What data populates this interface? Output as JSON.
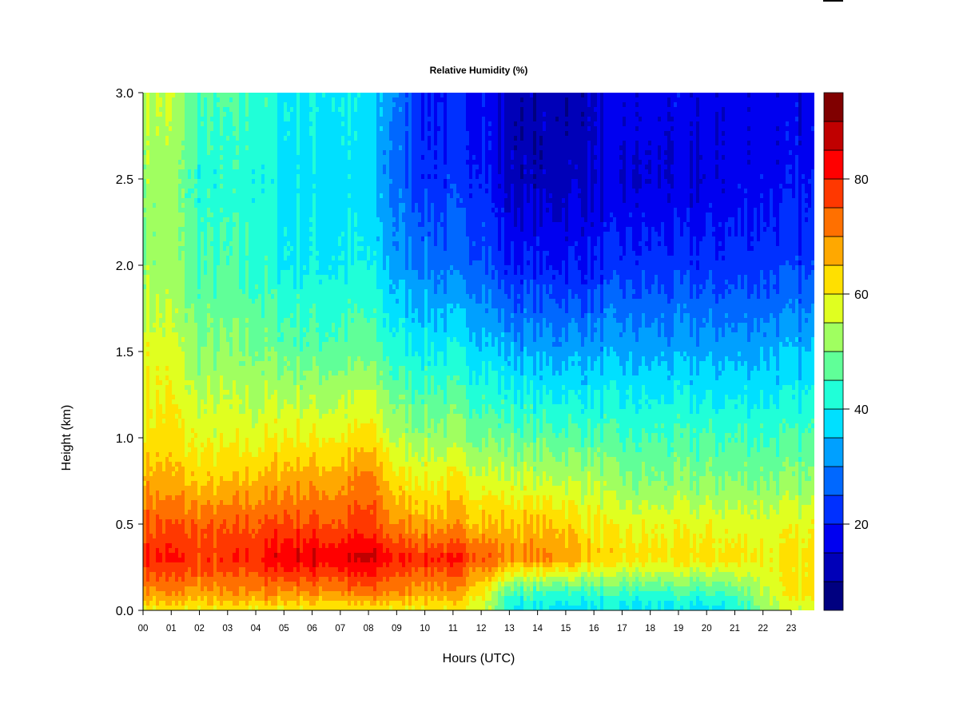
{
  "chart_data": {
    "type": "heatmap",
    "title": "Relative Humidity (%)",
    "xlabel": "Hours (UTC)",
    "ylabel": "Height (km)",
    "x_ticks": [
      "00",
      "01",
      "02",
      "03",
      "04",
      "05",
      "06",
      "07",
      "08",
      "09",
      "10",
      "11",
      "12",
      "13",
      "14",
      "15",
      "16",
      "17",
      "18",
      "19",
      "20",
      "21",
      "22",
      "23"
    ],
    "y_ticks": [
      "0.0",
      "0.5",
      "1.0",
      "1.5",
      "2.0",
      "2.5",
      "3.0"
    ],
    "xlim": [
      0,
      23.83
    ],
    "ylim": [
      0,
      3.0
    ],
    "colorbar": {
      "levels": [
        5,
        10,
        15,
        20,
        25,
        30,
        35,
        40,
        45,
        50,
        55,
        60,
        65,
        70,
        75,
        80,
        85,
        90,
        95
      ],
      "tick_labels": [
        "20",
        "40",
        "60",
        "80"
      ],
      "colors": [
        "#000080",
        "#0000B8",
        "#0000F0",
        "#0030FF",
        "#0068FF",
        "#00A0FF",
        "#00E0FF",
        "#20FFD8",
        "#60FF98",
        "#A0FF60",
        "#E0FF20",
        "#FFE000",
        "#FFA800",
        "#FF7000",
        "#FF3800",
        "#FF0000",
        "#C00000",
        "#800000"
      ]
    },
    "hours": [
      0,
      1,
      2,
      3,
      4,
      5,
      6,
      7,
      8,
      9,
      10,
      11,
      12,
      13,
      14,
      15,
      16,
      17,
      18,
      19,
      20,
      21,
      22,
      23
    ],
    "heights_km": [
      0.0,
      0.1,
      0.3,
      0.5,
      0.75,
      1.0,
      1.5,
      2.0,
      2.5,
      3.0
    ],
    "rh_values": [
      [
        60,
        60,
        60,
        60,
        60,
        60,
        60,
        60,
        60,
        60,
        60,
        60,
        58,
        40,
        38,
        38,
        38,
        38,
        38,
        38,
        38,
        40,
        52,
        56
      ],
      [
        70,
        70,
        68,
        68,
        70,
        70,
        70,
        70,
        72,
        70,
        68,
        68,
        62,
        45,
        44,
        44,
        44,
        44,
        44,
        44,
        44,
        46,
        55,
        60
      ],
      [
        80,
        80,
        78,
        78,
        80,
        85,
        85,
        84,
        86,
        80,
        80,
        80,
        76,
        70,
        70,
        70,
        64,
        62,
        62,
        62,
        62,
        62,
        60,
        60
      ],
      [
        75,
        75,
        74,
        74,
        75,
        76,
        76,
        75,
        77,
        70,
        68,
        68,
        66,
        65,
        65,
        64,
        60,
        58,
        58,
        58,
        58,
        58,
        58,
        58
      ],
      [
        68,
        66,
        64,
        64,
        66,
        68,
        68,
        68,
        72,
        62,
        60,
        60,
        58,
        56,
        55,
        55,
        54,
        50,
        50,
        50,
        50,
        50,
        50,
        50
      ],
      [
        62,
        62,
        58,
        58,
        58,
        60,
        60,
        60,
        62,
        54,
        52,
        52,
        50,
        48,
        47,
        47,
        46,
        45,
        45,
        45,
        45,
        45,
        45,
        45
      ],
      [
        58,
        57,
        50,
        50,
        50,
        48,
        47,
        47,
        48,
        42,
        40,
        40,
        38,
        34,
        33,
        33,
        33,
        33,
        33,
        33,
        33,
        33,
        34,
        34
      ],
      [
        52,
        52,
        45,
        45,
        44,
        40,
        40,
        40,
        40,
        32,
        30,
        27,
        27,
        20,
        20,
        20,
        20,
        22,
        22,
        22,
        22,
        22,
        23,
        23
      ],
      [
        52,
        52,
        42,
        42,
        42,
        38,
        38,
        38,
        36,
        28,
        22,
        22,
        22,
        13,
        12,
        13,
        14,
        15,
        15,
        15,
        15,
        18,
        18,
        18
      ],
      [
        55,
        55,
        45,
        45,
        45,
        40,
        40,
        40,
        38,
        30,
        20,
        20,
        20,
        12,
        12,
        12,
        13,
        17,
        17,
        17,
        17,
        17,
        17,
        17
      ]
    ]
  }
}
